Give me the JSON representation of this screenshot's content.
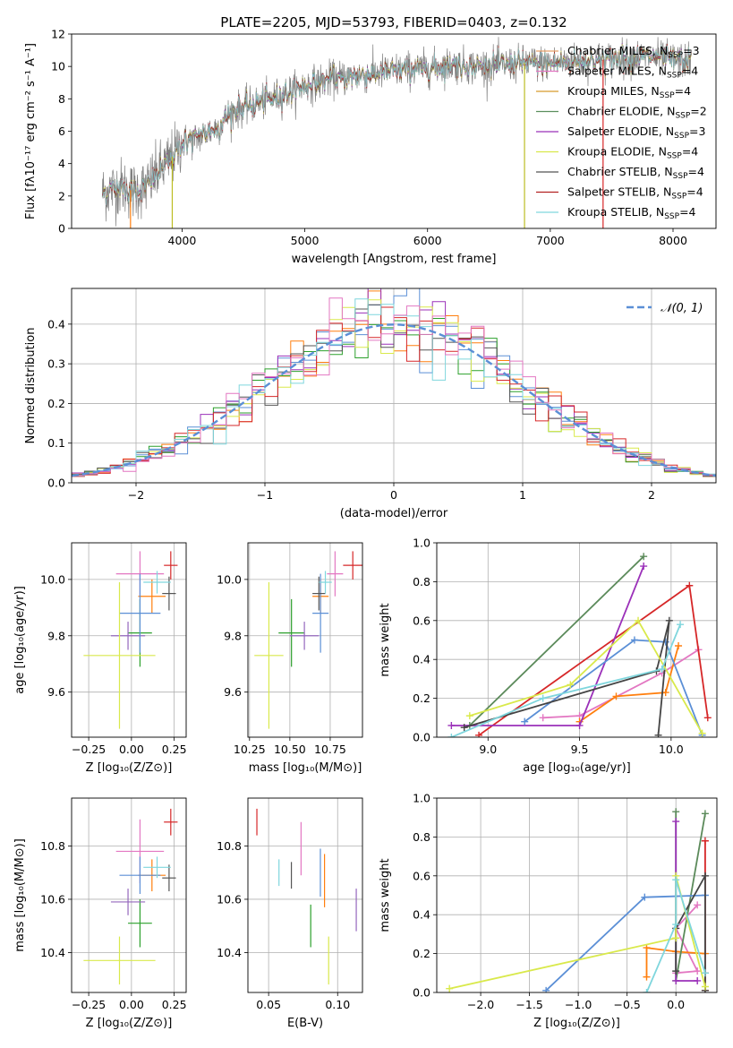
{
  "title": "PLATE=2205, MJD=53793, FIBERID=0403, z=0.132",
  "colors": [
    "#7f7f7f",
    "#e377c2",
    "#ff7f0e",
    "#2ca02c",
    "#9467bd",
    "#bcbd22",
    "#17becf",
    "#d62728",
    "#8c564b"
  ],
  "chart_data": [
    {
      "id": "spectrum",
      "type": "line",
      "title": "PLATE=2205, MJD=53793, FIBERID=0403, z=0.132",
      "xlabel": "wavelength [Angstrom, rest frame]",
      "ylabel": "Flux [fλ10⁻¹⁷ erg cm⁻² s⁻¹ A⁻¹]",
      "xlim": [
        3100,
        8350
      ],
      "ylim": [
        0,
        12
      ],
      "xticks": [
        4000,
        5000,
        6000,
        7000,
        8000
      ],
      "yticks": [
        0,
        2,
        4,
        6,
        8,
        10,
        12
      ],
      "legend": "top-right",
      "series": [
        {
          "name": "Chabrier MILES, N_SSP=3",
          "color": "#e8a06a"
        },
        {
          "name": "Salpeter MILES, N_SSP=4",
          "color": "#e377c2"
        },
        {
          "name": "Kroupa MILES, N_SSP=4",
          "color": "#d89b2a"
        },
        {
          "name": "Chabrier ELODIE, N_SSP=2",
          "color": "#5b8f5e"
        },
        {
          "name": "Salpeter ELODIE, N_SSP=3",
          "color": "#9b30b9"
        },
        {
          "name": "Kroupa ELODIE, N_SSP=4",
          "color": "#d9e94b"
        },
        {
          "name": "Chabrier STELIB, N_SSP=4",
          "color": "#555555"
        },
        {
          "name": "Salpeter STELIB, N_SSP=4",
          "color": "#b22222"
        },
        {
          "name": "Kroupa STELIB, N_SSP=4",
          "color": "#7fd6dd"
        }
      ],
      "continuum": {
        "x": [
          3350,
          3500,
          3600,
          3700,
          3800,
          3900,
          4000,
          4100,
          4200,
          4300,
          4400,
          4600,
          4800,
          5000,
          5200,
          5400,
          5600,
          5800,
          6000,
          6200,
          6400,
          6600,
          6800,
          7000,
          7200,
          7400,
          7600,
          7800,
          8000,
          8150
        ],
        "y": [
          2.2,
          2.6,
          2.3,
          2.5,
          3.4,
          4.2,
          5.3,
          5.5,
          5.9,
          6.3,
          7.2,
          7.7,
          8.2,
          8.8,
          9.2,
          9.4,
          9.6,
          9.8,
          9.9,
          10.1,
          10.0,
          10.1,
          10.2,
          10.2,
          10.3,
          10.4,
          10.5,
          10.6,
          10.4,
          10.3
        ]
      },
      "drops": [
        {
          "x": 3580,
          "color": "#ff7f0e"
        },
        {
          "x": 3920,
          "color": "#bcbd22"
        },
        {
          "x": 6790,
          "color": "#bcbd22"
        },
        {
          "x": 7430,
          "color": "#d62728"
        }
      ]
    },
    {
      "id": "residuals",
      "type": "histogram",
      "xlabel": "(data-model)/error",
      "ylabel": "Normed distribution",
      "xlim": [
        -2.5,
        2.5
      ],
      "ylim": [
        0,
        0.49
      ],
      "xticks": [
        -2,
        -1,
        0,
        1,
        2
      ],
      "yticks": [
        0.0,
        0.1,
        0.2,
        0.3,
        0.4
      ],
      "grid": true,
      "legend": "top-right",
      "reference_label": "𝒩(0, 1)",
      "reference_color": "#5b8fd6",
      "bin_width": 0.1
    },
    {
      "id": "age-vs-z",
      "type": "errorbar",
      "xlabel": "Z [log₁₀(Z/Z⊙)]",
      "ylabel": "age  [log₁₀(age/yr)]",
      "xlim": [
        -0.35,
        0.32
      ],
      "ylim": [
        9.44,
        10.13
      ],
      "xticks": [
        -0.25,
        0.0,
        0.25
      ],
      "yticks": [
        9.6,
        9.8,
        10.0
      ],
      "grid": true,
      "points": [
        {
          "x": 0.05,
          "y": 10.02,
          "xerr": 0.14,
          "yerr": 0.08,
          "color": "#e377c2"
        },
        {
          "x": 0.12,
          "y": 9.94,
          "xerr": 0.08,
          "yerr": 0.06,
          "color": "#ff7f0e"
        },
        {
          "x": 0.23,
          "y": 10.05,
          "xerr": 0.04,
          "yerr": 0.05,
          "color": "#d62728"
        },
        {
          "x": 0.05,
          "y": 9.81,
          "xerr": 0.07,
          "yerr": 0.12,
          "color": "#2ca02c"
        },
        {
          "x": -0.02,
          "y": 9.8,
          "xerr": 0.1,
          "yerr": 0.05,
          "color": "#9467bd"
        },
        {
          "x": 0.05,
          "y": 9.88,
          "xerr": 0.12,
          "yerr": 0.14,
          "color": "#5b8fd6"
        },
        {
          "x": 0.22,
          "y": 9.95,
          "xerr": 0.04,
          "yerr": 0.06,
          "color": "#555555"
        },
        {
          "x": -0.07,
          "y": 9.73,
          "xerr": 0.21,
          "yerr": 0.26,
          "color": "#d9e94b"
        },
        {
          "x": 0.15,
          "y": 9.99,
          "xerr": 0.08,
          "yerr": 0.04,
          "color": "#7fd6dd"
        }
      ]
    },
    {
      "id": "age-vs-mass",
      "type": "errorbar",
      "xlabel": "mass [log₁₀(M/M⊙)]",
      "ylabel": "",
      "xlim": [
        10.24,
        10.95
      ],
      "ylim": [
        9.44,
        10.13
      ],
      "xticks": [
        10.25,
        10.5,
        10.75
      ],
      "yticks": [
        9.6,
        9.8,
        10.0
      ],
      "grid": true,
      "points": [
        {
          "x": 10.78,
          "y": 10.02,
          "xerr": 0.05,
          "yerr": 0.08,
          "color": "#e377c2"
        },
        {
          "x": 10.69,
          "y": 9.94,
          "xerr": 0.05,
          "yerr": 0.06,
          "color": "#ff7f0e"
        },
        {
          "x": 10.89,
          "y": 10.05,
          "xerr": 0.06,
          "yerr": 0.05,
          "color": "#d62728"
        },
        {
          "x": 10.51,
          "y": 9.81,
          "xerr": 0.08,
          "yerr": 0.12,
          "color": "#2ca02c"
        },
        {
          "x": 10.59,
          "y": 9.8,
          "xerr": 0.09,
          "yerr": 0.05,
          "color": "#9467bd"
        },
        {
          "x": 10.69,
          "y": 9.88,
          "xerr": 0.05,
          "yerr": 0.14,
          "color": "#5b8fd6"
        },
        {
          "x": 10.68,
          "y": 9.95,
          "xerr": 0.04,
          "yerr": 0.06,
          "color": "#555555"
        },
        {
          "x": 10.37,
          "y": 9.73,
          "xerr": 0.09,
          "yerr": 0.26,
          "color": "#d9e94b"
        },
        {
          "x": 10.72,
          "y": 9.99,
          "xerr": 0.04,
          "yerr": 0.04,
          "color": "#7fd6dd"
        }
      ]
    },
    {
      "id": "weight-vs-age",
      "type": "line",
      "xlabel": "age  [log₁₀(age/yr)]",
      "ylabel": "mass weight",
      "xlim": [
        8.72,
        10.25
      ],
      "ylim": [
        0.0,
        1.0
      ],
      "xticks": [
        9.0,
        9.5,
        10.0
      ],
      "yticks": [
        0.0,
        0.2,
        0.4,
        0.6,
        0.8,
        1.0
      ],
      "grid": true,
      "series": [
        {
          "color": "#e377c2",
          "x": [
            9.3,
            9.5,
            9.95,
            10.15
          ],
          "y": [
            0.1,
            0.11,
            0.33,
            0.45
          ]
        },
        {
          "color": "#ff7f0e",
          "x": [
            9.5,
            9.7,
            9.97,
            10.04
          ],
          "y": [
            0.08,
            0.21,
            0.23,
            0.47
          ]
        },
        {
          "color": "#d62728",
          "x": [
            8.95,
            10.1,
            10.2
          ],
          "y": [
            0.01,
            0.78,
            0.1
          ]
        },
        {
          "color": "#5b8a5a",
          "x": [
            8.9,
            9.85
          ],
          "y": [
            0.06,
            0.93
          ]
        },
        {
          "color": "#9b30b9",
          "x": [
            8.8,
            9.5,
            9.85
          ],
          "y": [
            0.06,
            0.06,
            0.88
          ]
        },
        {
          "color": "#5b8fd6",
          "x": [
            9.2,
            9.8,
            9.97,
            10.17
          ],
          "y": [
            0.08,
            0.5,
            0.49,
            0.01
          ]
        },
        {
          "color": "#444444",
          "x": [
            8.87,
            9.92,
            9.99,
            9.93
          ],
          "y": [
            0.05,
            0.34,
            0.6,
            0.01
          ]
        },
        {
          "color": "#d9e94b",
          "x": [
            8.9,
            9.45,
            9.82,
            10.17
          ],
          "y": [
            0.11,
            0.27,
            0.6,
            0.02
          ]
        },
        {
          "color": "#7fd6dd",
          "x": [
            8.8,
            9.3,
            9.95,
            10.05
          ],
          "y": [
            0.0,
            0.2,
            0.35,
            0.58
          ]
        }
      ]
    },
    {
      "id": "mass-vs-z",
      "type": "errorbar",
      "xlabel": "Z [log₁₀(Z/Z⊙)]",
      "ylabel": "mass [log₁₀(M/M⊙)]",
      "xlim": [
        -0.35,
        0.32
      ],
      "ylim": [
        10.25,
        10.98
      ],
      "xticks": [
        -0.25,
        0.0,
        0.25
      ],
      "yticks": [
        10.4,
        10.6,
        10.8
      ],
      "grid": true,
      "points": [
        {
          "x": 0.05,
          "y": 10.78,
          "xerr": 0.14,
          "yerr": 0.12,
          "color": "#e377c2"
        },
        {
          "x": 0.12,
          "y": 10.69,
          "xerr": 0.08,
          "yerr": 0.06,
          "color": "#ff7f0e"
        },
        {
          "x": 0.23,
          "y": 10.89,
          "xerr": 0.04,
          "yerr": 0.05,
          "color": "#d62728"
        },
        {
          "x": 0.05,
          "y": 10.51,
          "xerr": 0.07,
          "yerr": 0.09,
          "color": "#2ca02c"
        },
        {
          "x": -0.02,
          "y": 10.59,
          "xerr": 0.1,
          "yerr": 0.05,
          "color": "#9467bd"
        },
        {
          "x": 0.05,
          "y": 10.69,
          "xerr": 0.12,
          "yerr": 0.07,
          "color": "#5b8fd6"
        },
        {
          "x": 0.22,
          "y": 10.68,
          "xerr": 0.04,
          "yerr": 0.05,
          "color": "#555555"
        },
        {
          "x": -0.07,
          "y": 10.37,
          "xerr": 0.21,
          "yerr": 0.09,
          "color": "#d9e94b"
        },
        {
          "x": 0.15,
          "y": 10.72,
          "xerr": 0.08,
          "yerr": 0.04,
          "color": "#7fd6dd"
        }
      ]
    },
    {
      "id": "mass-vs-ebv",
      "type": "errorbar",
      "xlabel": "E(B-V)",
      "ylabel": "",
      "xlim": [
        0.035,
        0.118
      ],
      "ylim": [
        10.25,
        10.98
      ],
      "xticks": [
        0.05,
        0.1
      ],
      "yticks": [
        10.4,
        10.6,
        10.8
      ],
      "grid": true,
      "points": [
        {
          "x": 0.0735,
          "y": 10.79,
          "xerr": 0.0,
          "yerr": 0.1,
          "color": "#e377c2"
        },
        {
          "x": 0.0905,
          "y": 10.67,
          "xerr": 0.0,
          "yerr": 0.1,
          "color": "#ff7f0e"
        },
        {
          "x": 0.0415,
          "y": 10.89,
          "xerr": 0.0,
          "yerr": 0.05,
          "color": "#d62728"
        },
        {
          "x": 0.0805,
          "y": 10.5,
          "xerr": 0.0,
          "yerr": 0.08,
          "color": "#2ca02c"
        },
        {
          "x": 0.1135,
          "y": 10.56,
          "xerr": 0.0,
          "yerr": 0.08,
          "color": "#9467bd"
        },
        {
          "x": 0.0875,
          "y": 10.7,
          "xerr": 0.0,
          "yerr": 0.09,
          "color": "#5b8fd6"
        },
        {
          "x": 0.0665,
          "y": 10.69,
          "xerr": 0.0,
          "yerr": 0.05,
          "color": "#555555"
        },
        {
          "x": 0.0935,
          "y": 10.37,
          "xerr": 0.0,
          "yerr": 0.09,
          "color": "#d9e94b"
        },
        {
          "x": 0.0575,
          "y": 10.7,
          "xerr": 0.0,
          "yerr": 0.05,
          "color": "#7fd6dd"
        }
      ]
    },
    {
      "id": "weight-vs-z",
      "type": "line",
      "xlabel": "Z [log₁₀(Z/Z⊙)]",
      "ylabel": "mass weight",
      "xlim": [
        -2.45,
        0.42
      ],
      "ylim": [
        0.0,
        1.0
      ],
      "xticks": [
        -2.0,
        -1.5,
        -1.0,
        -0.5,
        0.0
      ],
      "yticks": [
        0.0,
        0.2,
        0.4,
        0.6,
        0.8,
        1.0
      ],
      "grid": true,
      "series": [
        {
          "color": "#e377c2",
          "x": [
            0.0,
            0.22,
            0.0,
            0.22
          ],
          "y": [
            0.1,
            0.11,
            0.33,
            0.45
          ]
        },
        {
          "color": "#ff7f0e",
          "x": [
            -0.3,
            -0.3,
            0.0,
            0.3
          ],
          "y": [
            0.08,
            0.23,
            0.21,
            0.2
          ]
        },
        {
          "color": "#d62728",
          "x": [
            0.3,
            0.3,
            0.3
          ],
          "y": [
            0.01,
            0.78,
            0.1
          ]
        },
        {
          "color": "#5b8a5a",
          "x": [
            0.0,
            0.0,
            0.3
          ],
          "y": [
            0.93,
            0.06,
            0.92
          ]
        },
        {
          "color": "#9b30b9",
          "x": [
            0.0,
            0.0,
            0.22
          ],
          "y": [
            0.88,
            0.06,
            0.06
          ]
        },
        {
          "color": "#5b8fd6",
          "x": [
            -1.33,
            -0.32,
            0.3
          ],
          "y": [
            0.01,
            0.49,
            0.5
          ]
        },
        {
          "color": "#444444",
          "x": [
            0.0,
            0.0,
            0.3,
            0.3
          ],
          "y": [
            0.11,
            0.33,
            0.6,
            0.01
          ]
        },
        {
          "color": "#d9e94b",
          "x": [
            -2.32,
            0.0,
            0.0,
            0.3
          ],
          "y": [
            0.02,
            0.28,
            0.6,
            0.03
          ]
        },
        {
          "color": "#7fd6dd",
          "x": [
            -0.3,
            0.0,
            0.0,
            0.3
          ],
          "y": [
            0.0,
            0.35,
            0.58,
            0.1
          ]
        }
      ]
    }
  ]
}
